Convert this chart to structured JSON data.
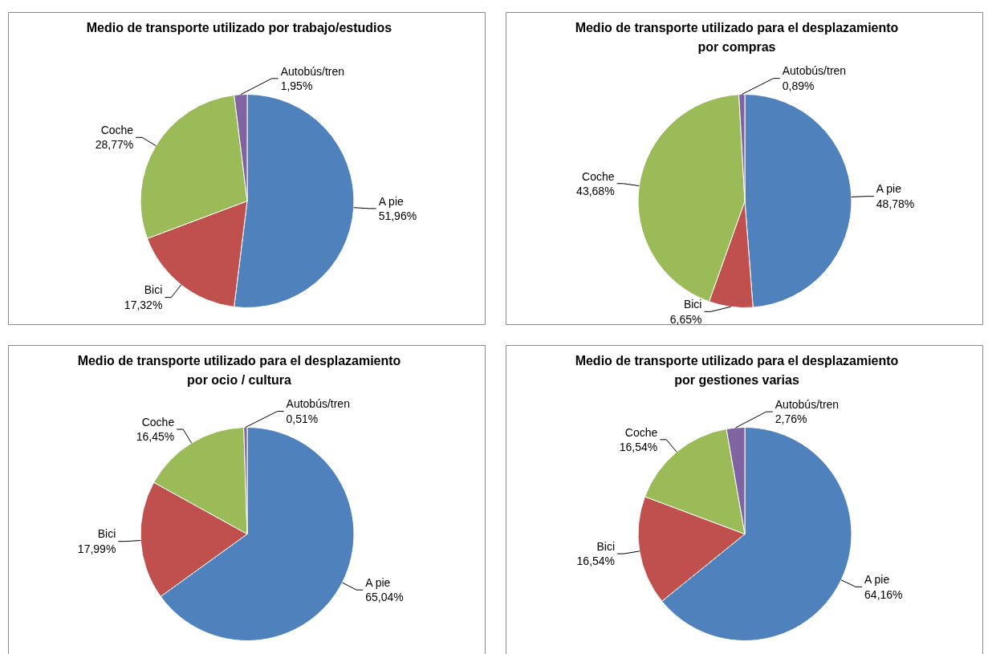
{
  "chart_data": [
    {
      "type": "pie",
      "title": "Medio de transporte utilizado por trabajo/estudios",
      "categories": [
        "A pie",
        "Bici",
        "Coche",
        "Autobús/tren"
      ],
      "values": [
        51.96,
        17.32,
        28.77,
        1.95
      ],
      "value_labels": [
        "51,96%",
        "17,32%",
        "28,77%",
        "1,95%"
      ],
      "colors": [
        "#4f81bd",
        "#c0504d",
        "#9bbb59",
        "#8064a2"
      ]
    },
    {
      "type": "pie",
      "title": "Medio de transporte utilizado para el desplazamiento por compras",
      "categories": [
        "A pie",
        "Bici",
        "Coche",
        "Autobús/tren"
      ],
      "values": [
        48.78,
        6.65,
        43.68,
        0.89
      ],
      "value_labels": [
        "48,78%",
        "6,65%",
        "43,68%",
        "0,89%"
      ],
      "colors": [
        "#4f81bd",
        "#c0504d",
        "#9bbb59",
        "#8064a2"
      ]
    },
    {
      "type": "pie",
      "title": "Medio de transporte utilizado para el desplazamiento por ocio / cultura",
      "categories": [
        "A pie",
        "Bici",
        "Coche",
        "Autobús/tren"
      ],
      "values": [
        65.04,
        17.99,
        16.45,
        0.51
      ],
      "value_labels": [
        "65,04%",
        "17,99%",
        "16,45%",
        "0,51%"
      ],
      "colors": [
        "#4f81bd",
        "#c0504d",
        "#9bbb59",
        "#8064a2"
      ]
    },
    {
      "type": "pie",
      "title": "Medio de transporte utilizado para el desplazamiento por gestiones varias",
      "categories": [
        "A pie",
        "Bici",
        "Coche",
        "Autobús/tren"
      ],
      "values": [
        64.16,
        16.54,
        16.54,
        2.76
      ],
      "value_labels": [
        "64,16%",
        "16,54%",
        "16,54%",
        "2,76%"
      ],
      "colors": [
        "#4f81bd",
        "#c0504d",
        "#9bbb59",
        "#8064a2"
      ]
    }
  ]
}
